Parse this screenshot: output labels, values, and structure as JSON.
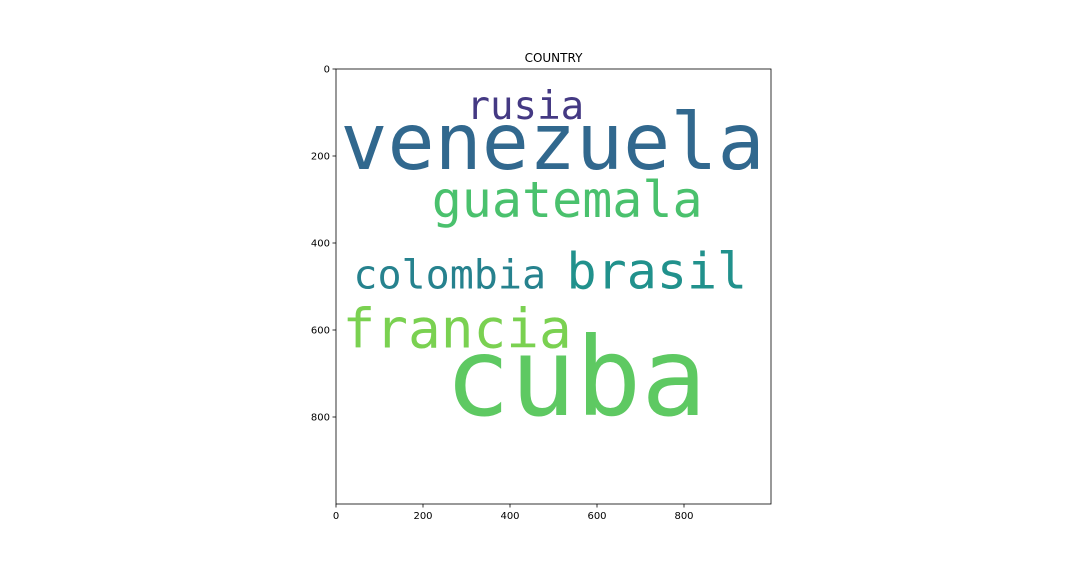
{
  "chart_data": {
    "type": "wordcloud",
    "title": "COUNTRY",
    "xlabel": "",
    "ylabel": "",
    "xlim": [
      0,
      1000
    ],
    "ylim": [
      1000,
      0
    ],
    "xticks": [
      0,
      200,
      400,
      600,
      800
    ],
    "yticks": [
      0,
      200,
      400,
      600,
      800
    ],
    "grid": false,
    "words": [
      {
        "text": "cuba",
        "x": 250,
        "y": 795,
        "size": 250,
        "color": "#5ec962"
      },
      {
        "text": "venezuela",
        "x": 10,
        "y": 230,
        "size": 180,
        "color": "#31688e"
      },
      {
        "text": "guatemala",
        "x": 220,
        "y": 340,
        "size": 115,
        "color": "#4ac16d"
      },
      {
        "text": "brasil",
        "x": 530,
        "y": 505,
        "size": 115,
        "color": "#21918c"
      },
      {
        "text": "francia",
        "x": 15,
        "y": 640,
        "size": 125,
        "color": "#7ad151"
      },
      {
        "text": "colombia",
        "x": 40,
        "y": 505,
        "size": 92,
        "color": "#26828e"
      },
      {
        "text": "rusia",
        "x": 300,
        "y": 115,
        "size": 90,
        "color": "#443983"
      }
    ]
  }
}
